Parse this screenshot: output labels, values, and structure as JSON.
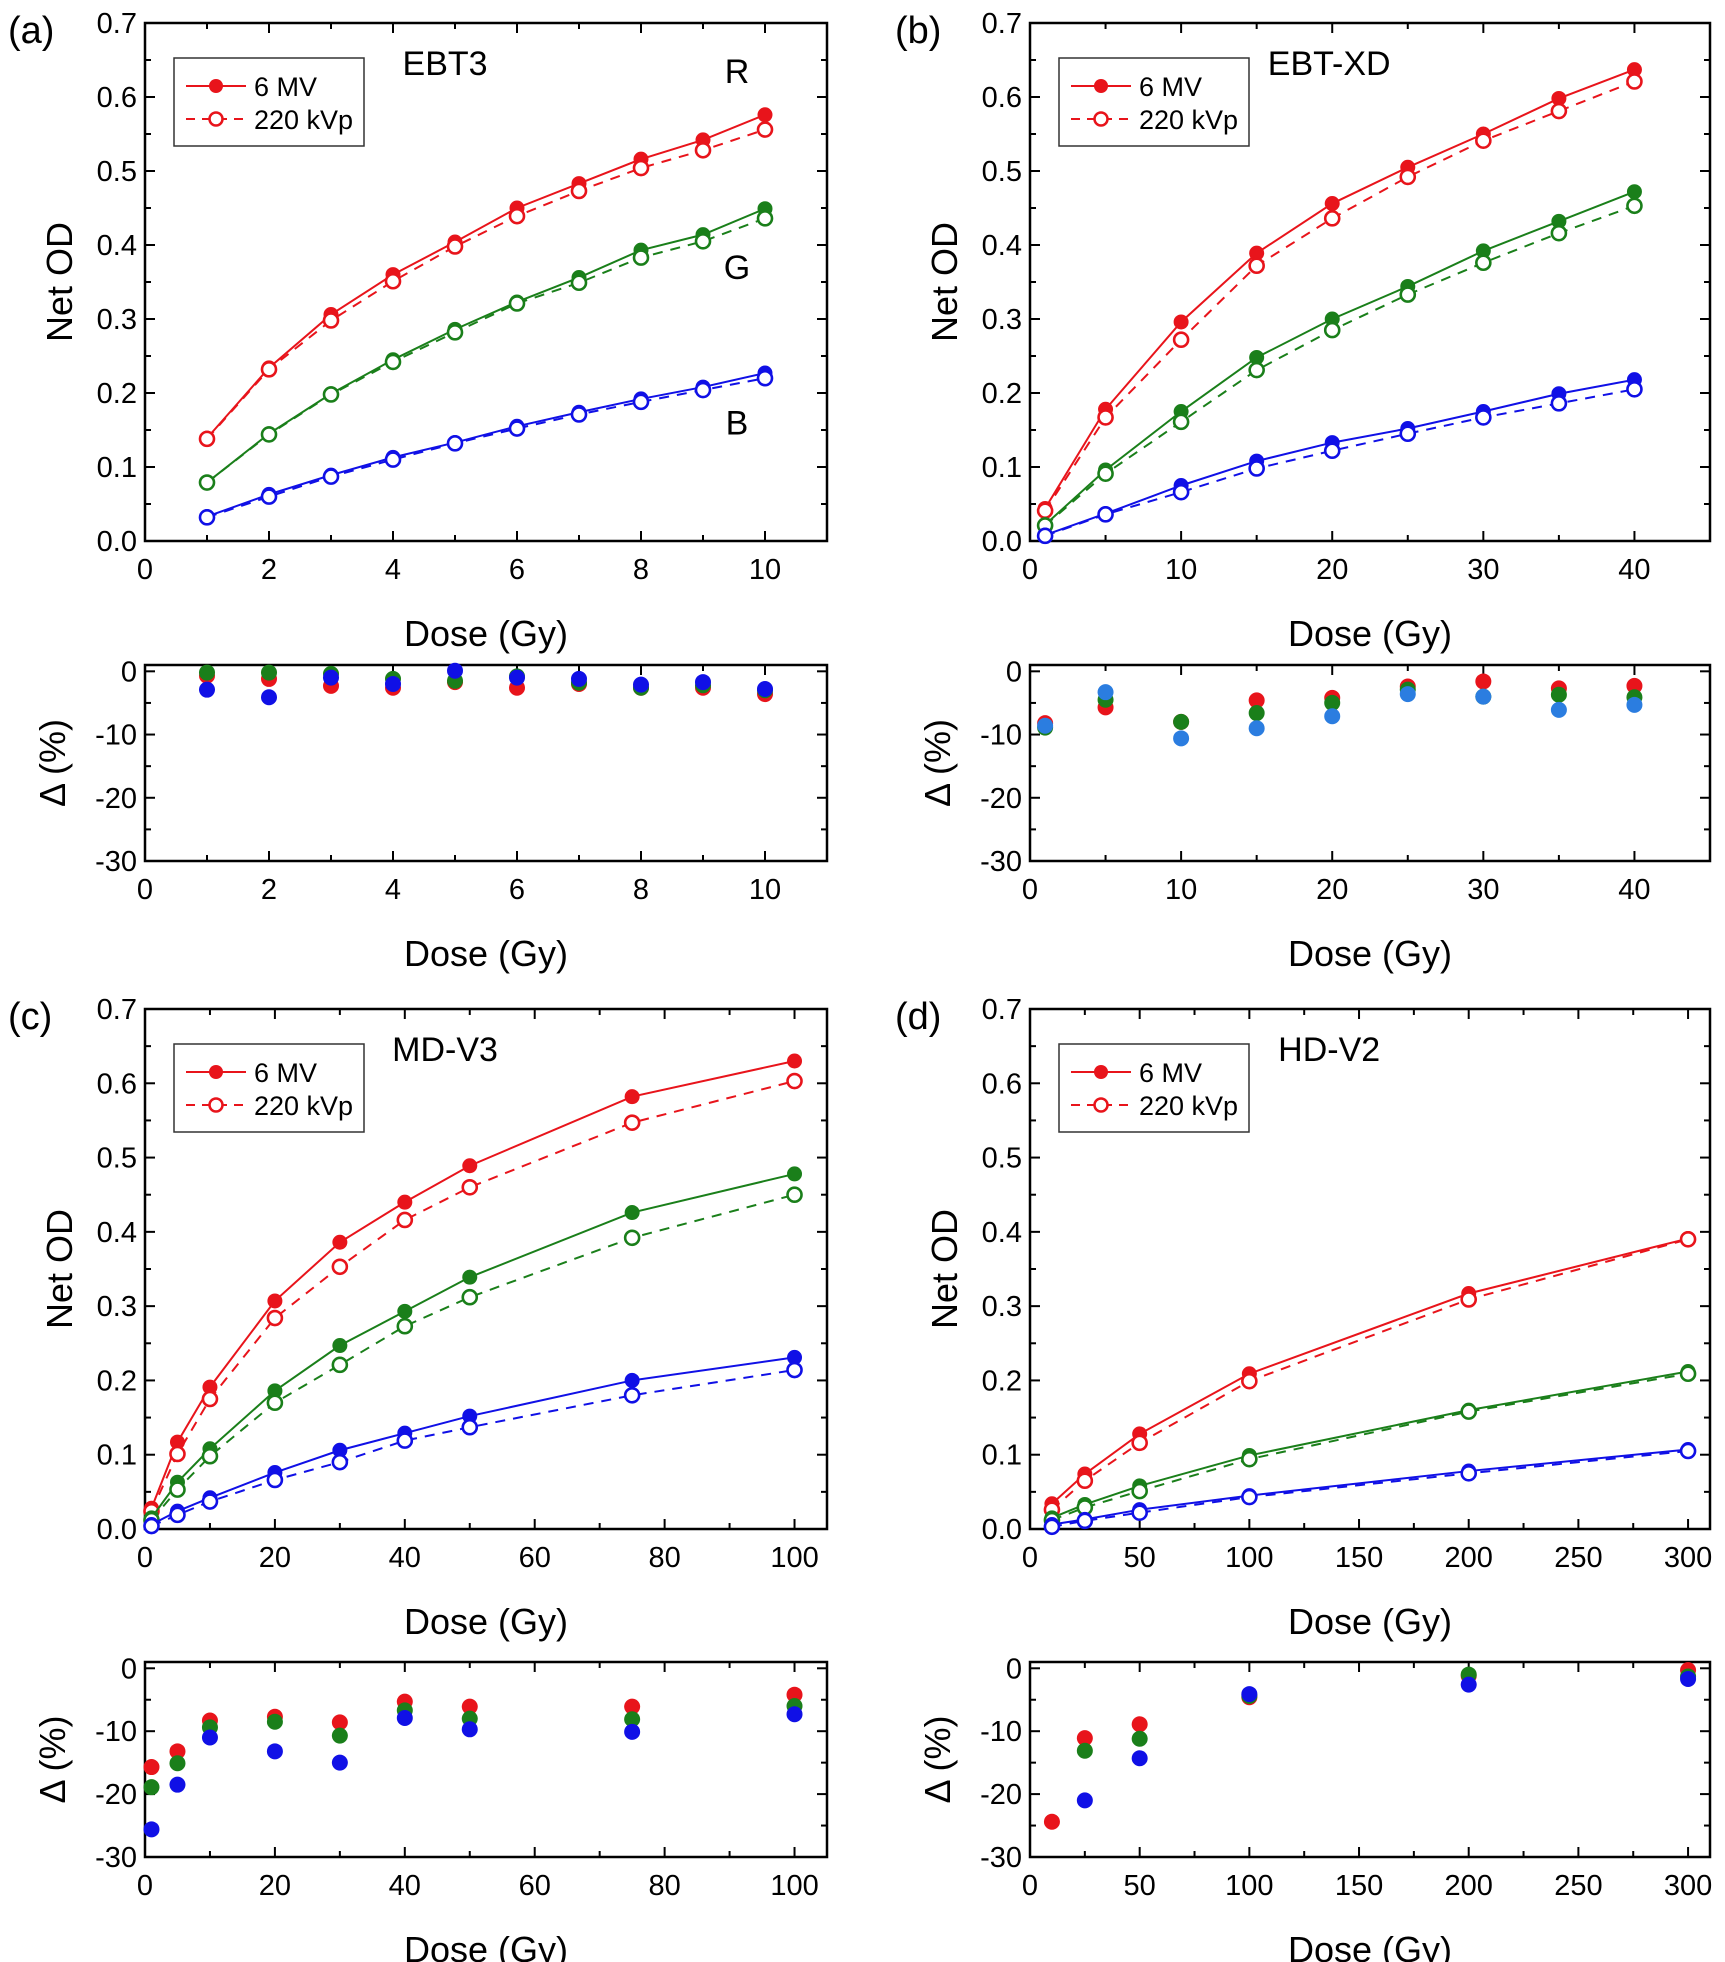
{
  "figure": {
    "legend": {
      "entries": [
        {
          "label": "6 MV",
          "style": "solid-filled"
        },
        {
          "label": "220 kVp",
          "style": "dashed-open"
        }
      ]
    },
    "colors": {
      "R": "#e8141b",
      "G": "#1a7f1a",
      "B": "#1010e6",
      "B_light": "#2b7de0",
      "axis": "#000000"
    },
    "channel_labels": [
      "R",
      "G",
      "B"
    ]
  },
  "chart_data": [
    {
      "id": "a",
      "type": "line",
      "panel_tag": "(a)",
      "title": "EBT3",
      "xlabel": "Dose (Gy)",
      "ylabel": "Net OD",
      "xlim": [
        0,
        11
      ],
      "ylim": [
        0,
        0.7
      ],
      "xticks": [
        0,
        2,
        4,
        6,
        8,
        10
      ],
      "xticks_minor": [
        1,
        3,
        5,
        7,
        9,
        11
      ],
      "yticks": [
        "0.0",
        "0.1",
        "0.2",
        "0.3",
        "0.4",
        "0.5",
        "0.6",
        "0.7"
      ],
      "channel_labels_shown": true,
      "x": [
        1,
        2,
        3,
        4,
        5,
        6,
        7,
        8,
        9,
        10
      ],
      "series": [
        {
          "name": "R 6 MV",
          "channel": "R",
          "beam": "6 MV",
          "values": [
            0.139,
            0.234,
            0.306,
            0.36,
            0.404,
            0.45,
            0.483,
            0.516,
            0.542,
            0.576
          ]
        },
        {
          "name": "R 220 kVp",
          "channel": "R",
          "beam": "220 kVp",
          "values": [
            0.138,
            0.232,
            0.298,
            0.351,
            0.398,
            0.439,
            0.473,
            0.504,
            0.528,
            0.556
          ]
        },
        {
          "name": "G 6 MV",
          "channel": "G",
          "beam": "6 MV",
          "values": [
            0.079,
            0.145,
            0.199,
            0.245,
            0.286,
            0.323,
            0.356,
            0.393,
            0.414,
            0.449
          ]
        },
        {
          "name": "G 220 kVp",
          "channel": "G",
          "beam": "220 kVp",
          "values": [
            0.079,
            0.144,
            0.198,
            0.242,
            0.282,
            0.321,
            0.349,
            0.383,
            0.405,
            0.436
          ]
        },
        {
          "name": "B 6 MV",
          "channel": "B",
          "beam": "6 MV",
          "values": [
            0.033,
            0.063,
            0.089,
            0.113,
            0.133,
            0.155,
            0.174,
            0.192,
            0.208,
            0.227
          ]
        },
        {
          "name": "B 220 kVp",
          "channel": "B",
          "beam": "220 kVp",
          "values": [
            0.032,
            0.06,
            0.087,
            0.11,
            0.132,
            0.152,
            0.171,
            0.188,
            0.204,
            0.22
          ]
        }
      ],
      "delta": {
        "type": "scatter",
        "xlabel": "Dose (Gy)",
        "ylabel": "Δ (%)",
        "ylim": [
          -30,
          1
        ],
        "yticks": [
          0,
          -10,
          -20,
          -30
        ],
        "yticks_minor": [
          -5,
          -15,
          -25
        ],
        "series": [
          {
            "name": "R",
            "channel": "R",
            "values": [
              -0.7,
              -1.2,
              -2.3,
              -2.6,
              -1.7,
              -2.6,
              -2.0,
              -2.6,
              -2.6,
              -3.6
            ]
          },
          {
            "name": "G",
            "channel": "G",
            "values": [
              -0.2,
              -0.2,
              -0.4,
              -1.2,
              -1.5,
              -0.8,
              -1.8,
              -2.6,
              -2.2,
              -3.0
            ]
          },
          {
            "name": "B",
            "channel": "B",
            "values": [
              -2.9,
              -4.1,
              -1.0,
              -2.0,
              0.1,
              -1.0,
              -1.2,
              -2.1,
              -1.7,
              -2.8
            ]
          }
        ]
      }
    },
    {
      "id": "b",
      "type": "line",
      "panel_tag": "(b)",
      "title": "EBT-XD",
      "xlabel": "Dose (Gy)",
      "ylabel": "Net OD",
      "xlim": [
        0,
        45
      ],
      "ylim": [
        0,
        0.7
      ],
      "xticks": [
        0,
        10,
        20,
        30,
        40
      ],
      "xticks_minor": [
        5,
        15,
        25,
        35,
        45
      ],
      "yticks": [
        "0.0",
        "0.1",
        "0.2",
        "0.3",
        "0.4",
        "0.5",
        "0.6",
        "0.7"
      ],
      "channel_labels_shown": false,
      "x": [
        1,
        5,
        10,
        15,
        20,
        25,
        30,
        35,
        40
      ],
      "series": [
        {
          "name": "R 6 MV",
          "channel": "R",
          "beam": "6 MV",
          "values": [
            0.044,
            0.178,
            0.296,
            0.389,
            0.456,
            0.505,
            0.55,
            0.598,
            0.637
          ]
        },
        {
          "name": "R 220 kVp",
          "channel": "R",
          "beam": "220 kVp",
          "values": [
            0.041,
            0.167,
            0.272,
            0.372,
            0.436,
            0.492,
            0.541,
            0.581,
            0.621
          ]
        },
        {
          "name": "G 6 MV",
          "channel": "G",
          "beam": "6 MV",
          "values": [
            0.022,
            0.096,
            0.175,
            0.248,
            0.3,
            0.344,
            0.392,
            0.432,
            0.472
          ]
        },
        {
          "name": "G 220 kVp",
          "channel": "G",
          "beam": "220 kVp",
          "values": [
            0.021,
            0.091,
            0.161,
            0.231,
            0.285,
            0.333,
            0.376,
            0.416,
            0.453
          ]
        },
        {
          "name": "B 6 MV",
          "channel": "B",
          "beam": "6 MV",
          "values": [
            0.008,
            0.037,
            0.075,
            0.108,
            0.133,
            0.152,
            0.175,
            0.199,
            0.218
          ]
        },
        {
          "name": "B 220 kVp",
          "channel": "B",
          "beam": "220 kVp",
          "values": [
            0.007,
            0.036,
            0.066,
            0.098,
            0.122,
            0.145,
            0.167,
            0.186,
            0.205
          ]
        }
      ],
      "delta": {
        "type": "scatter",
        "xlabel": "Dose (Gy)",
        "ylabel": "Δ (%)",
        "ylim": [
          -30,
          1
        ],
        "yticks": [
          0,
          -10,
          -20,
          -30
        ],
        "yticks_minor": [
          -5,
          -15,
          -25
        ],
        "series": [
          {
            "name": "R",
            "channel": "R",
            "values": [
              -8.2,
              -5.7,
              -8.0,
              -4.6,
              -4.2,
              -2.4,
              -1.6,
              -2.7,
              -2.3
            ]
          },
          {
            "name": "G",
            "channel": "G",
            "values": [
              -8.9,
              -4.5,
              -8.0,
              -6.6,
              -5.0,
              -2.9,
              -4.0,
              -3.7,
              -4.1
            ]
          },
          {
            "name": "B",
            "channel": "B_light",
            "values": [
              -8.6,
              -3.3,
              -10.6,
              -9.0,
              -7.1,
              -3.6,
              -4.0,
              -6.1,
              -5.3
            ]
          }
        ]
      }
    },
    {
      "id": "c",
      "type": "line",
      "panel_tag": "(c)",
      "title": "MD-V3",
      "xlabel": "Dose (Gy)",
      "ylabel": "Net OD",
      "xlim": [
        0,
        105
      ],
      "ylim": [
        0,
        0.7
      ],
      "xticks": [
        0,
        20,
        40,
        60,
        80,
        100
      ],
      "xticks_minor": [
        10,
        30,
        50,
        70,
        90
      ],
      "yticks": [
        "0.0",
        "0.1",
        "0.2",
        "0.3",
        "0.4",
        "0.5",
        "0.6",
        "0.7"
      ],
      "channel_labels_shown": false,
      "x": [
        1,
        5,
        10,
        20,
        30,
        40,
        50,
        75,
        100
      ],
      "series": [
        {
          "name": "R 6 MV",
          "channel": "R",
          "beam": "6 MV",
          "values": [
            0.028,
            0.117,
            0.191,
            0.307,
            0.386,
            0.44,
            0.489,
            0.582,
            0.63
          ]
        },
        {
          "name": "R 220 kVp",
          "channel": "R",
          "beam": "220 kVp",
          "values": [
            0.024,
            0.101,
            0.175,
            0.284,
            0.353,
            0.416,
            0.46,
            0.547,
            0.603
          ]
        },
        {
          "name": "G 6 MV",
          "channel": "G",
          "beam": "6 MV",
          "values": [
            0.015,
            0.063,
            0.108,
            0.186,
            0.247,
            0.293,
            0.339,
            0.426,
            0.478
          ]
        },
        {
          "name": "G 220 kVp",
          "channel": "G",
          "beam": "220 kVp",
          "values": [
            0.012,
            0.053,
            0.098,
            0.17,
            0.221,
            0.273,
            0.312,
            0.392,
            0.45
          ]
        },
        {
          "name": "B 6 MV",
          "channel": "B",
          "beam": "6 MV",
          "values": [
            0.006,
            0.024,
            0.042,
            0.076,
            0.106,
            0.129,
            0.152,
            0.2,
            0.231
          ]
        },
        {
          "name": "B 220 kVp",
          "channel": "B",
          "beam": "220 kVp",
          "values": [
            0.004,
            0.019,
            0.037,
            0.066,
            0.09,
            0.119,
            0.137,
            0.18,
            0.214
          ]
        }
      ],
      "delta": {
        "type": "scatter",
        "xlabel": "Dose (Gy)",
        "ylabel": "Δ (%)",
        "ylim": [
          -30,
          1
        ],
        "yticks": [
          0,
          -10,
          -20,
          -30
        ],
        "yticks_minor": [
          -5,
          -15,
          -25
        ],
        "series": [
          {
            "name": "R",
            "channel": "R",
            "values": [
              -15.7,
              -13.2,
              -8.3,
              -7.7,
              -8.6,
              -5.3,
              -6.1,
              -6.1,
              -4.2
            ]
          },
          {
            "name": "G",
            "channel": "G",
            "values": [
              -18.9,
              -15.1,
              -9.4,
              -8.5,
              -10.7,
              -6.7,
              -8.0,
              -8.1,
              -6.0
            ]
          },
          {
            "name": "B",
            "channel": "B",
            "values": [
              -25.6,
              -18.5,
              -11.0,
              -13.2,
              -15.0,
              -7.9,
              -9.7,
              -10.1,
              -7.3
            ]
          }
        ]
      }
    },
    {
      "id": "d",
      "type": "line",
      "panel_tag": "(d)",
      "title": "HD-V2",
      "xlabel": "Dose (Gy)",
      "ylabel": "Net OD",
      "xlim": [
        0,
        310
      ],
      "ylim": [
        0,
        0.7
      ],
      "xticks": [
        0,
        50,
        100,
        150,
        200,
        250,
        300
      ],
      "xticks_minor": [
        25,
        75,
        125,
        175,
        225,
        275
      ],
      "yticks": [
        "0.0",
        "0.1",
        "0.2",
        "0.3",
        "0.4",
        "0.5",
        "0.6",
        "0.7"
      ],
      "channel_labels_shown": false,
      "x": [
        10,
        25,
        50,
        100,
        200,
        300
      ],
      "series": [
        {
          "name": "R 6 MV",
          "channel": "R",
          "beam": "6 MV",
          "values": [
            0.034,
            0.074,
            0.128,
            0.209,
            0.317,
            0.391
          ]
        },
        {
          "name": "R 220 kVp",
          "channel": "R",
          "beam": "220 kVp",
          "values": [
            0.026,
            0.065,
            0.116,
            0.199,
            0.309,
            0.39
          ]
        },
        {
          "name": "G 6 MV",
          "channel": "G",
          "beam": "6 MV",
          "values": [
            0.015,
            0.033,
            0.058,
            0.099,
            0.16,
            0.212
          ]
        },
        {
          "name": "G 220 kVp",
          "channel": "G",
          "beam": "220 kVp",
          "values": [
            0.012,
            0.029,
            0.051,
            0.094,
            0.158,
            0.209
          ]
        },
        {
          "name": "B 6 MV",
          "channel": "B",
          "beam": "6 MV",
          "values": [
            0.006,
            0.013,
            0.026,
            0.045,
            0.078,
            0.107
          ]
        },
        {
          "name": "B 220 kVp",
          "channel": "B",
          "beam": "220 kVp",
          "values": [
            0.003,
            0.011,
            0.022,
            0.043,
            0.075,
            0.105
          ]
        }
      ],
      "delta": {
        "type": "scatter",
        "xlabel": "Dose (Gy)",
        "ylabel": "Δ (%)",
        "ylim": [
          -30,
          1
        ],
        "yticks": [
          0,
          -10,
          -20,
          -30
        ],
        "yticks_minor": [
          -5,
          -15,
          -25
        ],
        "series": [
          {
            "name": "R",
            "channel": "R",
            "values": [
              -24.4,
              -11.1,
              -8.9,
              -4.6,
              -1.2,
              -0.3
            ]
          },
          {
            "name": "G",
            "channel": "G",
            "values": [
              null,
              -13.1,
              -11.2,
              -4.4,
              -1.0,
              -1.3
            ]
          },
          {
            "name": "B",
            "channel": "B",
            "values": [
              null,
              -21.0,
              -14.3,
              -4.1,
              -2.6,
              -1.7
            ]
          }
        ]
      }
    }
  ]
}
